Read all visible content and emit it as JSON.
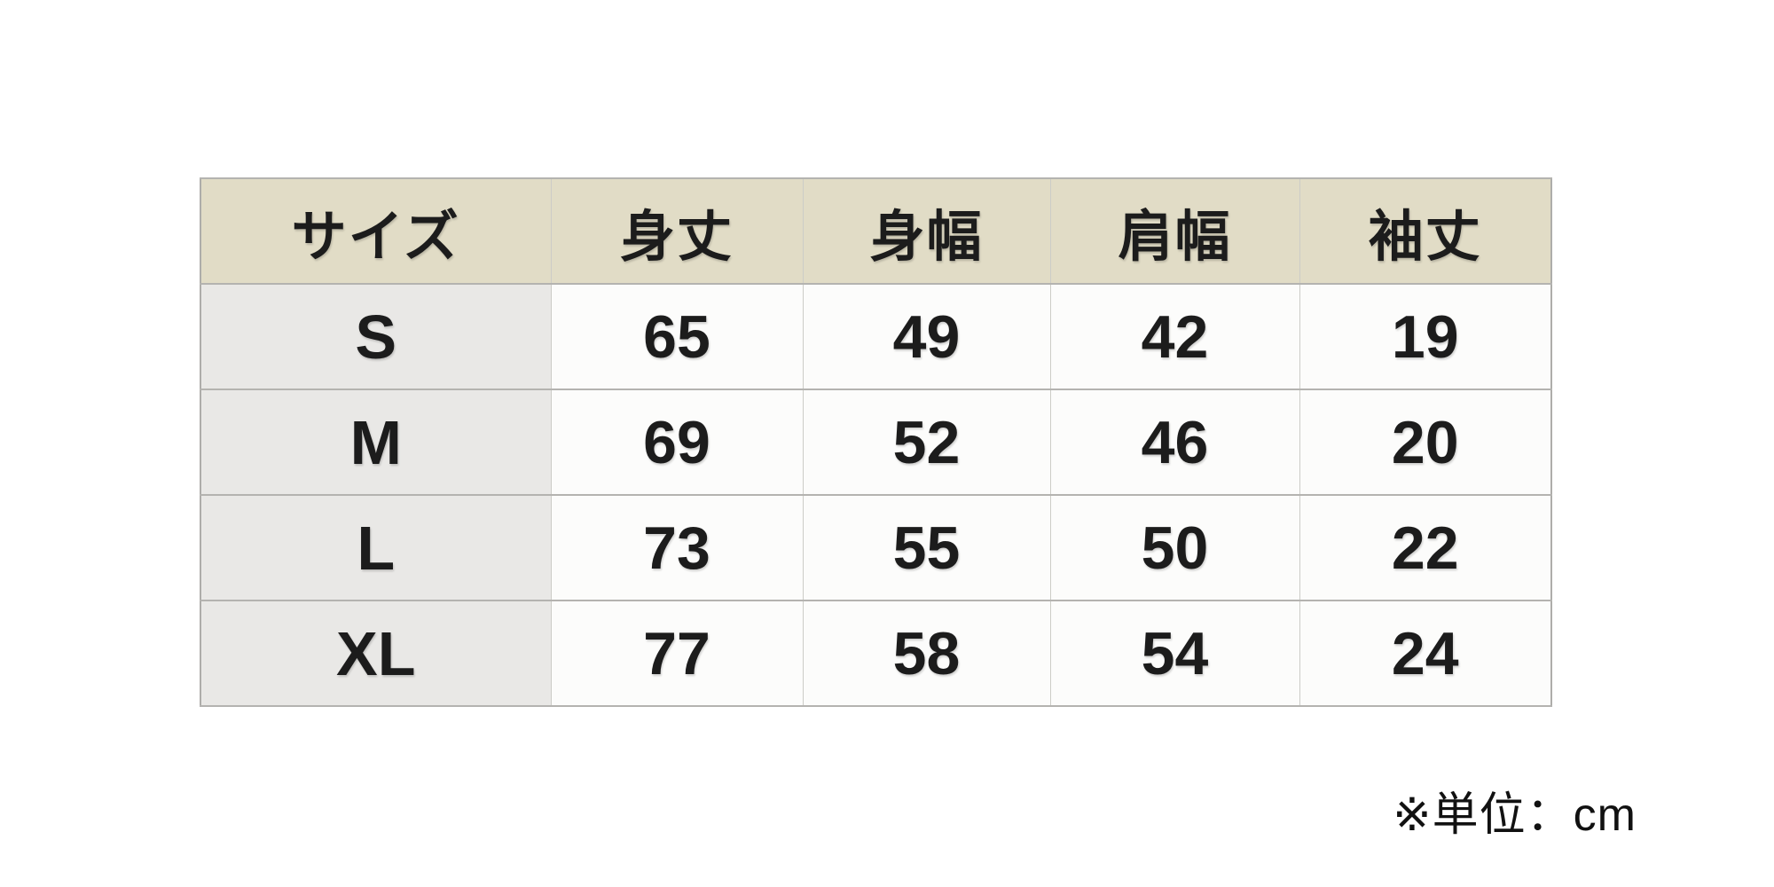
{
  "chart_data": {
    "type": "table",
    "columns": [
      "サイズ",
      "身丈",
      "身幅",
      "肩幅",
      "袖丈"
    ],
    "rows": [
      {
        "size": "S",
        "values": [
          "65",
          "49",
          "42",
          "19"
        ]
      },
      {
        "size": "M",
        "values": [
          "69",
          "52",
          "46",
          "20"
        ]
      },
      {
        "size": "L",
        "values": [
          "73",
          "55",
          "50",
          "22"
        ]
      },
      {
        "size": "XL",
        "values": [
          "77",
          "58",
          "54",
          "24"
        ]
      }
    ],
    "unit": "cm"
  },
  "footer": {
    "note": "※単位：cm"
  },
  "colors": {
    "header_bg": "#e1dcc6",
    "size_column_bg": "#e9e8e6",
    "cell_bg": "#fcfcfb",
    "grid_line": "#b4b3b0",
    "text": "#1c1c1c",
    "background": "#ffffff"
  }
}
